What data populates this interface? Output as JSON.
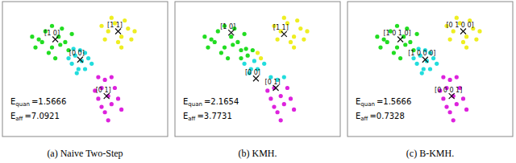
{
  "chart_data": [
    {
      "type": "scatter",
      "title": "(a) Naive Two-Step",
      "xlim": [
        0,
        100
      ],
      "ylim": [
        0,
        100
      ],
      "tick_labels": false,
      "marker": "circle",
      "series": [
        {
          "color": "#22dd22",
          "x": [
            22,
            26,
            30,
            34,
            38,
            28,
            20,
            36,
            40,
            24,
            32,
            42,
            30,
            18,
            35
          ],
          "values": [
            72,
            78,
            66,
            74,
            70,
            62,
            66,
            80,
            64,
            70,
            58,
            76,
            82,
            74,
            68
          ]
        },
        {
          "color": "#22dddd",
          "x": [
            44,
            48,
            50,
            42,
            46,
            52,
            47,
            40,
            54,
            45,
            50,
            43
          ],
          "values": [
            60,
            56,
            62,
            54,
            50,
            58,
            64,
            58,
            54,
            47,
            50,
            65
          ]
        },
        {
          "color": "#eeee22",
          "x": [
            64,
            68,
            72,
            76,
            70,
            62,
            78,
            66,
            74,
            80,
            72,
            60
          ],
          "values": [
            78,
            84,
            74,
            80,
            70,
            72,
            72,
            88,
            86,
            78,
            66,
            82
          ]
        },
        {
          "color": "#dd22dd",
          "x": [
            60,
            64,
            66,
            58,
            62,
            68,
            62,
            56,
            70,
            64,
            60,
            66,
            72,
            58
          ],
          "values": [
            36,
            30,
            24,
            28,
            18,
            36,
            42,
            34,
            28,
            12,
            22,
            44,
            20,
            44
          ]
        }
      ],
      "centroids": {
        "marker": "x",
        "x": [
          32,
          47,
          70,
          63
        ],
        "values": [
          72,
          57,
          78,
          30
        ],
        "labels": [
          "[1 0]",
          "[0 0]",
          "[1 1]",
          "[0 1]"
        ]
      },
      "annotations": [
        {
          "text": "E",
          "sub": "quan",
          "sep": "=",
          "value": 1.5666
        },
        {
          "text": "E",
          "sub": "aff",
          "sep": "=",
          "value": 7.0921
        }
      ]
    },
    {
      "type": "scatter",
      "title": "(b) KMH.",
      "xlim": [
        0,
        100
      ],
      "ylim": [
        0,
        100
      ],
      "tick_labels": false,
      "marker": "circle",
      "series": [
        {
          "color": "#22dd22",
          "x": [
            22,
            26,
            30,
            34,
            38,
            28,
            20,
            36,
            40,
            24,
            32,
            42,
            30,
            18,
            35,
            44,
            47,
            40,
            43
          ],
          "values": [
            72,
            78,
            66,
            74,
            70,
            62,
            66,
            80,
            64,
            70,
            58,
            76,
            82,
            74,
            68,
            60,
            64,
            58,
            65
          ]
        },
        {
          "color": "#22dddd",
          "x": [
            42,
            46,
            54,
            45,
            50,
            48,
            62,
            66,
            58
          ],
          "values": [
            54,
            50,
            54,
            47,
            50,
            56,
            42,
            44,
            44
          ]
        },
        {
          "color": "#eeee22",
          "x": [
            64,
            68,
            72,
            76,
            70,
            62,
            78,
            66,
            74,
            80,
            72,
            60,
            50,
            52
          ],
          "values": [
            78,
            84,
            74,
            80,
            70,
            72,
            72,
            88,
            86,
            78,
            66,
            82,
            62,
            58
          ]
        },
        {
          "color": "#dd22dd",
          "x": [
            60,
            64,
            66,
            58,
            62,
            68,
            56,
            70,
            64,
            60,
            72
          ],
          "values": [
            36,
            30,
            24,
            28,
            18,
            36,
            34,
            28,
            12,
            22,
            20
          ]
        }
      ],
      "centroids": {
        "marker": "x",
        "x": [
          34,
          66,
          49,
          61
        ],
        "values": [
          77,
          76,
          43,
          36
        ],
        "labels": [
          "[1 0]",
          "[1 1]",
          "[0 0]",
          "[0 1]"
        ]
      },
      "annotations": [
        {
          "text": "E",
          "sub": "quan",
          "sep": "=",
          "value": 2.1654
        },
        {
          "text": "E",
          "sub": "aff",
          "sep": "=",
          "value": 3.7731
        }
      ]
    },
    {
      "type": "scatter",
      "title": "(c) B-KMH.",
      "xlim": [
        0,
        100
      ],
      "ylim": [
        0,
        100
      ],
      "tick_labels": false,
      "marker": "circle",
      "series": [
        {
          "color": "#22dd22",
          "x": [
            22,
            26,
            30,
            34,
            38,
            28,
            20,
            36,
            40,
            24,
            32,
            42,
            30,
            18,
            35
          ],
          "values": [
            72,
            78,
            66,
            74,
            70,
            62,
            66,
            80,
            64,
            70,
            58,
            76,
            82,
            74,
            68
          ]
        },
        {
          "color": "#22dddd",
          "x": [
            44,
            48,
            50,
            42,
            46,
            52,
            47,
            40,
            54,
            45,
            50,
            43
          ],
          "values": [
            60,
            56,
            62,
            54,
            50,
            58,
            64,
            58,
            54,
            47,
            50,
            65
          ]
        },
        {
          "color": "#eeee22",
          "x": [
            64,
            68,
            72,
            76,
            70,
            62,
            78,
            66,
            74,
            80,
            72,
            60
          ],
          "values": [
            78,
            84,
            74,
            80,
            70,
            72,
            72,
            88,
            86,
            78,
            66,
            82
          ]
        },
        {
          "color": "#dd22dd",
          "x": [
            60,
            64,
            66,
            58,
            62,
            68,
            62,
            56,
            70,
            64,
            60,
            66,
            72,
            58
          ],
          "values": [
            36,
            30,
            24,
            28,
            18,
            36,
            42,
            34,
            28,
            12,
            22,
            44,
            20,
            44
          ]
        }
      ],
      "centroids": {
        "marker": "x",
        "x": [
          32,
          47,
          70,
          63
        ],
        "values": [
          72,
          57,
          78,
          30
        ],
        "labels": [
          "[1 0 1 0]",
          "[1 0 0 0]",
          "[0 1 0 0]",
          "[0 0 0 1]"
        ]
      },
      "annotations": [
        {
          "text": "E",
          "sub": "quan",
          "sep": "=",
          "value": 1.5666
        },
        {
          "text": "E",
          "sub": "aff",
          "sep": "=",
          "value": 0.7328
        }
      ]
    }
  ]
}
